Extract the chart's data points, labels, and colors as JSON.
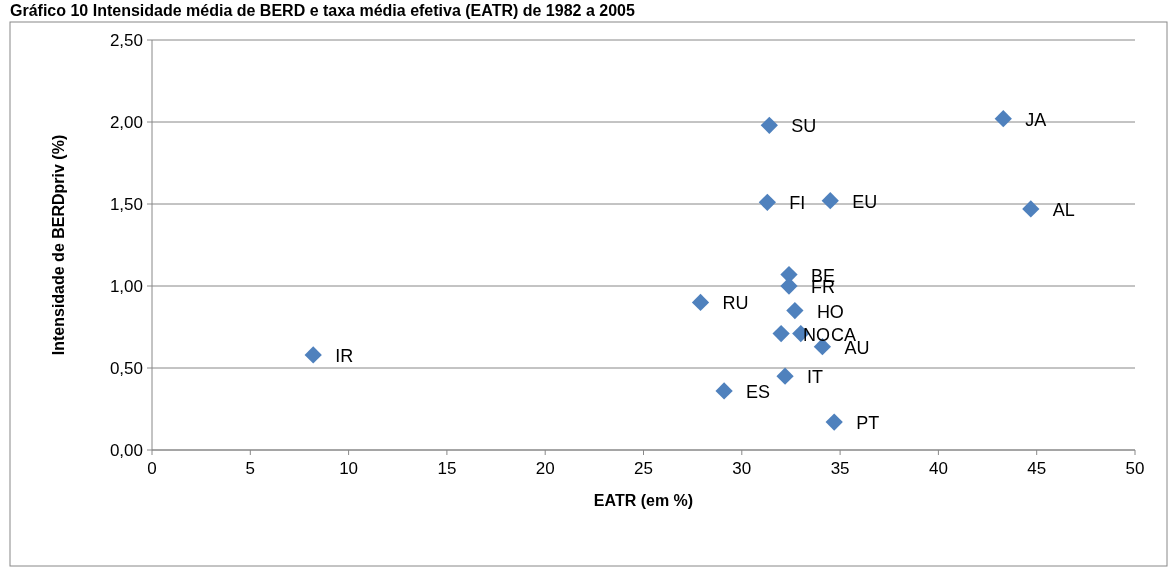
{
  "chart_data": {
    "type": "scatter",
    "title": "Gráfico 10 Intensidade média de BERD e taxa média efetiva (EATR) de 1982 a 2005",
    "xlabel": "EATR (em %)",
    "ylabel": "Intensidade de BERDpriv (%)",
    "xlim": [
      0,
      50
    ],
    "xticks": [
      0,
      5,
      10,
      15,
      20,
      25,
      30,
      35,
      40,
      45,
      50
    ],
    "ylim": [
      0,
      2.5
    ],
    "yticks": [
      {
        "value": 0,
        "label": "0,00"
      },
      {
        "value": 0.5,
        "label": "0,50"
      },
      {
        "value": 1,
        "label": "1,00"
      },
      {
        "value": 1.5,
        "label": "1,50"
      },
      {
        "value": 2,
        "label": "2,00"
      },
      {
        "value": 2.5,
        "label": "2,50"
      }
    ],
    "grid": "y",
    "marker": "diamond",
    "series": [
      {
        "color": "#4f81bd",
        "x": [
          31.4,
          43.3,
          31.3,
          34.5,
          44.7,
          32.4,
          32.4,
          27.9,
          32.7,
          32.0,
          33.0,
          34.1,
          8.2,
          32.2,
          29.1,
          34.7
        ],
        "values": [
          1.98,
          2.02,
          1.51,
          1.52,
          1.47,
          1.07,
          1.0,
          0.9,
          0.85,
          0.71,
          0.71,
          0.63,
          0.58,
          0.45,
          0.36,
          0.17
        ]
      }
    ],
    "annotations": [
      {
        "text": "SU",
        "x": 31.4,
        "y": 1.98
      },
      {
        "text": "JA",
        "x": 43.3,
        "y": 2.02
      },
      {
        "text": "FI",
        "x": 31.3,
        "y": 1.51
      },
      {
        "text": "EU",
        "x": 34.5,
        "y": 1.52
      },
      {
        "text": "AL",
        "x": 44.7,
        "y": 1.47
      },
      {
        "text": "BE",
        "x": 32.4,
        "y": 1.07
      },
      {
        "text": "FR",
        "x": 32.4,
        "y": 1.0
      },
      {
        "text": "RU",
        "x": 27.9,
        "y": 0.9
      },
      {
        "text": "HO",
        "x": 32.7,
        "y": 0.85
      },
      {
        "text": "NO",
        "x": 32.0,
        "y": 0.71
      },
      {
        "text": "CA",
        "x": 33.0,
        "y": 0.71
      },
      {
        "text": "AU",
        "x": 34.1,
        "y": 0.63
      },
      {
        "text": "IR",
        "x": 8.2,
        "y": 0.58
      },
      {
        "text": "IT",
        "x": 32.2,
        "y": 0.45
      },
      {
        "text": "ES",
        "x": 29.1,
        "y": 0.36
      },
      {
        "text": "PT",
        "x": 34.7,
        "y": 0.17
      }
    ]
  }
}
